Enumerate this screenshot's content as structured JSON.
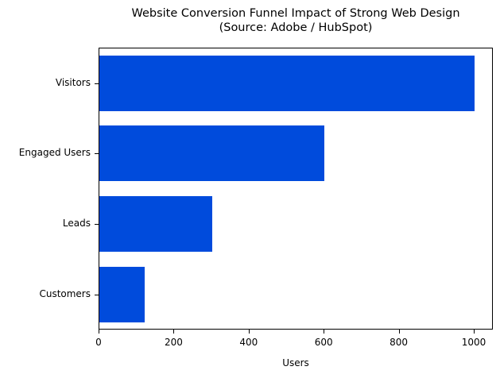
{
  "chart_data": {
    "type": "bar",
    "orientation": "horizontal",
    "title": "Website Conversion Funnel Impact of Strong Web Design",
    "subtitle": "(Source: Adobe / HubSpot)",
    "xlabel": "Users",
    "ylabel": "",
    "categories": [
      "Visitors",
      "Engaged Users",
      "Leads",
      "Customers"
    ],
    "values": [
      1000,
      600,
      300,
      120
    ],
    "xlim": [
      0,
      1050
    ],
    "xticks": [
      "0",
      "200",
      "400",
      "600",
      "800",
      "1000"
    ],
    "grid": false,
    "legend": null,
    "bar_color": "#004bdc"
  }
}
